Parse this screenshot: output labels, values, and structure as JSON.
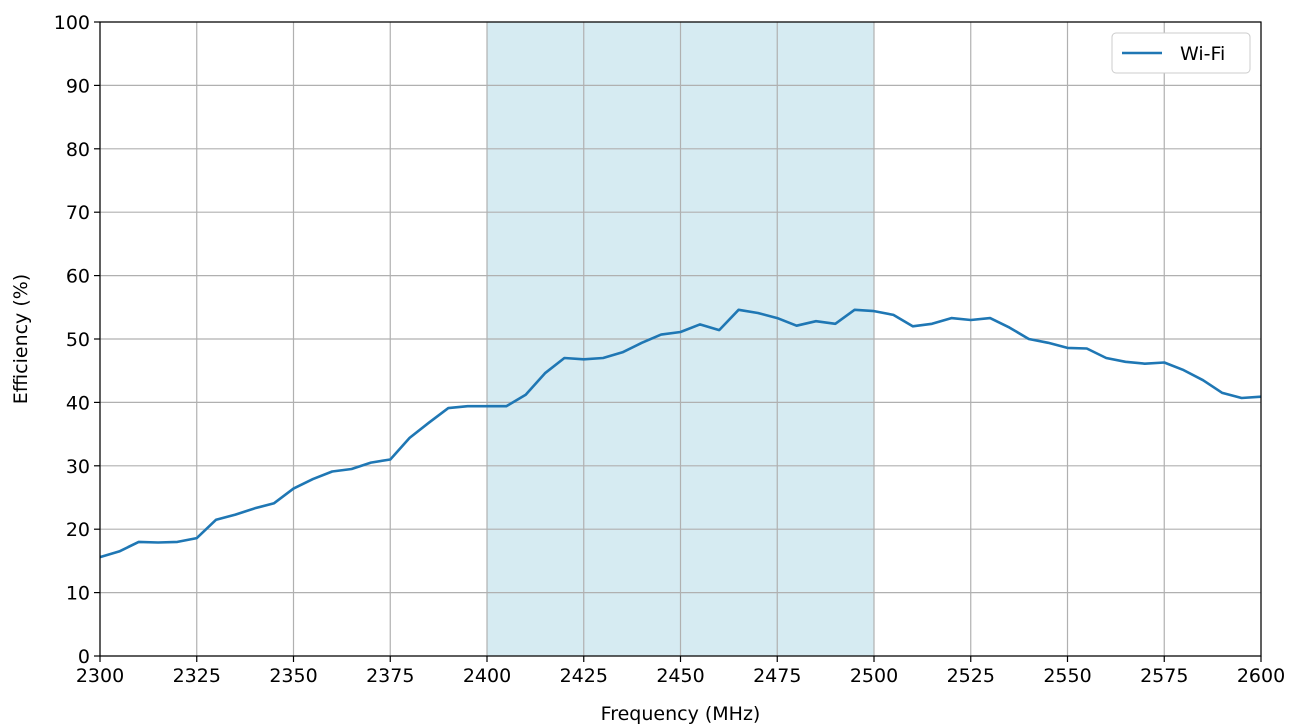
{
  "chart_data": {
    "type": "line",
    "title": "",
    "xlabel": "Frequency (MHz)",
    "ylabel": "Efficiency (%)",
    "xlim": [
      2300,
      2600
    ],
    "ylim": [
      0,
      100
    ],
    "xticks": [
      2300,
      2325,
      2350,
      2375,
      2400,
      2425,
      2450,
      2475,
      2500,
      2525,
      2550,
      2575,
      2600
    ],
    "yticks": [
      0,
      10,
      20,
      30,
      40,
      50,
      60,
      70,
      80,
      90,
      100
    ],
    "grid": true,
    "legend_position": "top-right",
    "shaded_band": {
      "x_start": 2400,
      "x_end": 2500,
      "color": "#add8e6"
    },
    "series": [
      {
        "name": "Wi-Fi",
        "color": "#1f77b4",
        "x": [
          2300,
          2305,
          2310,
          2315,
          2320,
          2325,
          2330,
          2335,
          2340,
          2345,
          2350,
          2355,
          2360,
          2365,
          2370,
          2375,
          2380,
          2385,
          2390,
          2395,
          2400,
          2405,
          2410,
          2415,
          2420,
          2425,
          2430,
          2435,
          2440,
          2445,
          2450,
          2455,
          2460,
          2465,
          2470,
          2475,
          2480,
          2485,
          2490,
          2495,
          2500,
          2505,
          2510,
          2515,
          2520,
          2525,
          2530,
          2535,
          2540,
          2545,
          2550,
          2555,
          2560,
          2565,
          2570,
          2575,
          2580,
          2585,
          2590,
          2595,
          2600
        ],
        "y": [
          15.6,
          16.5,
          18.0,
          17.9,
          18.0,
          18.6,
          21.5,
          22.3,
          23.3,
          24.1,
          26.4,
          27.9,
          29.1,
          29.5,
          30.5,
          31.0,
          34.4,
          36.8,
          39.1,
          39.4,
          39.4,
          39.4,
          41.2,
          44.6,
          47.0,
          46.8,
          47.0,
          47.9,
          49.4,
          50.7,
          51.1,
          52.3,
          51.4,
          54.6,
          54.1,
          53.3,
          52.1,
          52.8,
          52.4,
          54.6,
          54.4,
          53.8,
          52.0,
          52.4,
          53.3,
          53.0,
          53.3,
          51.8,
          50.0,
          49.4,
          48.6,
          48.5,
          47.0,
          46.4,
          46.1,
          46.3,
          45.1,
          43.5,
          41.5,
          40.7,
          40.9
        ]
      }
    ]
  }
}
